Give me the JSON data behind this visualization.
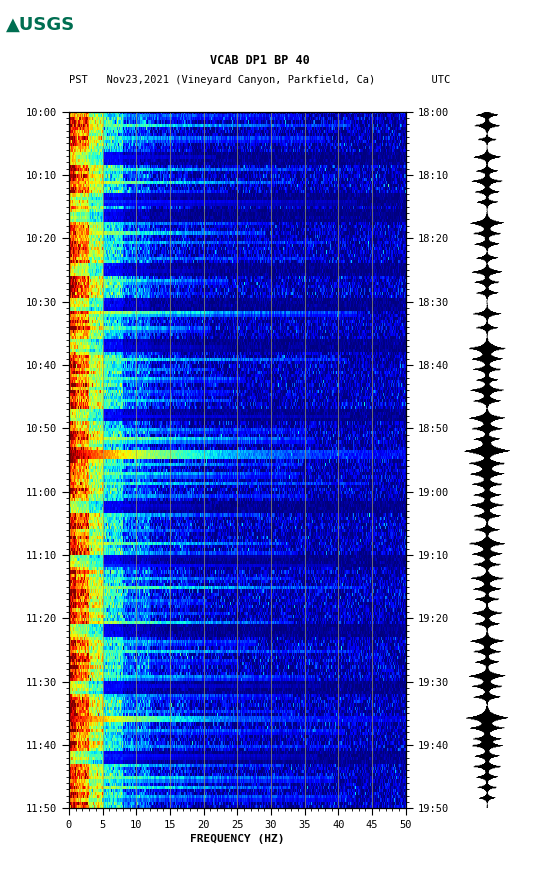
{
  "title_line1": "VCAB DP1 BP 40",
  "title_line2": "PST   Nov23,2021 (Vineyard Canyon, Parkfield, Ca)         UTC",
  "xlabel": "FREQUENCY (HZ)",
  "left_yticks": [
    "10:00",
    "10:10",
    "10:20",
    "10:30",
    "10:40",
    "10:50",
    "11:00",
    "11:10",
    "11:20",
    "11:30",
    "11:40",
    "11:50"
  ],
  "right_yticks": [
    "18:00",
    "18:10",
    "18:20",
    "18:30",
    "18:40",
    "18:50",
    "19:00",
    "19:10",
    "19:20",
    "19:30",
    "19:40",
    "19:50"
  ],
  "xticks": [
    0,
    5,
    10,
    15,
    20,
    25,
    30,
    35,
    40,
    45,
    50
  ],
  "xgrid_lines": [
    5,
    10,
    15,
    20,
    25,
    30,
    35,
    40,
    45
  ],
  "freq_max": 50,
  "colormap": "jet",
  "background_color": "#ffffff",
  "fig_width": 5.52,
  "fig_height": 8.93,
  "usgs_color": "#006E51",
  "grid_color": "#808080",
  "n_time_steps": 220,
  "n_freq_bins": 400
}
